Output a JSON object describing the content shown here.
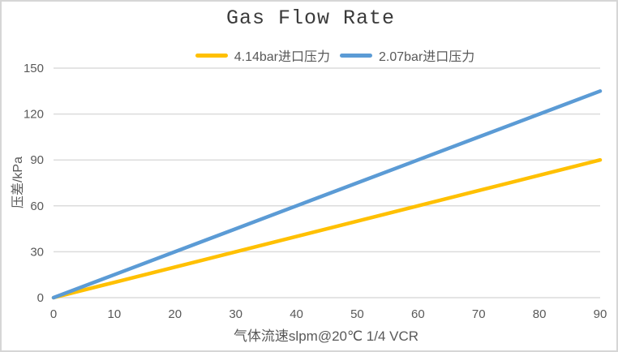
{
  "chart_data": {
    "type": "line",
    "title": "Gas Flow Rate",
    "xlabel": "气体流速slpm@20℃ 1/4 VCR",
    "ylabel": "压差/kPa",
    "x": [
      0,
      10,
      20,
      30,
      40,
      50,
      60,
      70,
      80,
      90
    ],
    "series": [
      {
        "name": "4.14bar进口压力",
        "color": "#FFC000",
        "values": [
          0,
          10,
          20,
          30,
          40,
          50,
          60,
          70,
          80,
          90
        ]
      },
      {
        "name": "2.07bar进口压力",
        "color": "#5B9BD5",
        "values": [
          0,
          15,
          30,
          45,
          60,
          75,
          90,
          105,
          120,
          135
        ]
      }
    ],
    "xlim": [
      0,
      90
    ],
    "ylim": [
      0,
      150
    ],
    "xticks": [
      0,
      10,
      20,
      30,
      40,
      50,
      60,
      70,
      80,
      90
    ],
    "yticks": [
      0,
      30,
      60,
      90,
      120,
      150
    ],
    "grid": "horizontal-only",
    "legend_position": "top-center"
  },
  "colors": {
    "grid": "#dcdcdc",
    "tick_text": "#595959",
    "title_text": "#3b3b3b",
    "background": "#ffffff",
    "frame_border": "#d6d6d6",
    "series_gold": "#FFC000",
    "series_blue": "#5B9BD5"
  }
}
